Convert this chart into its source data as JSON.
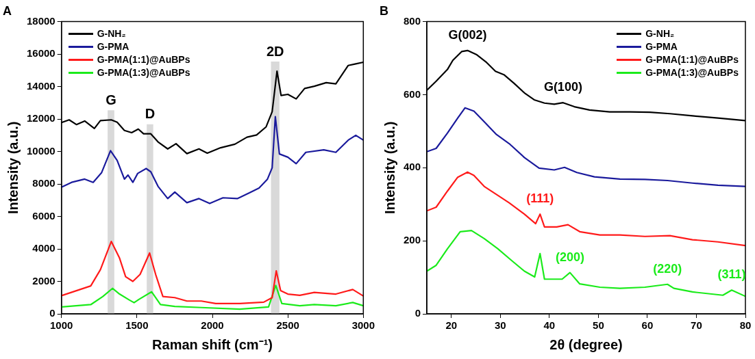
{
  "chart_data": [
    {
      "type": "line",
      "title": "A",
      "xlabel": "Raman shift (cm⁻¹)",
      "ylabel": "Intensity (a.u.)",
      "xlim": [
        1000,
        3000
      ],
      "xticks": [
        1000,
        1500,
        2000,
        2500,
        3000
      ],
      "ylim": [
        0,
        18000
      ],
      "yticks": [
        0,
        2000,
        4000,
        6000,
        8000,
        10000,
        12000,
        14000,
        16000,
        18000
      ],
      "grid": false,
      "legend": "top left",
      "marker": "none",
      "bands": [
        {
          "axis": "x",
          "from": 1306,
          "to": 1350,
          "label": "G",
          "color": "#d9d9d9"
        },
        {
          "axis": "x",
          "from": 1565,
          "to": 1608,
          "label": "D",
          "color": "#d9d9d9"
        },
        {
          "axis": "x",
          "from": 2388,
          "to": 2444,
          "label": "2D",
          "color": "#d9d9d9"
        }
      ],
      "series": [
        {
          "name": "G-NH₂",
          "color": "#000000",
          "x": [
            1000,
            1051,
            1099,
            1154,
            1218,
            1258,
            1330,
            1369,
            1417,
            1465,
            1509,
            1544,
            1592,
            1640,
            1704,
            1759,
            1831,
            1911,
            1966,
            2054,
            2149,
            2229,
            2293,
            2356,
            2396,
            2428,
            2455,
            2500,
            2555,
            2611,
            2675,
            2754,
            2818,
            2900,
            2950,
            3000
          ],
          "values": [
            11780,
            11950,
            11660,
            11880,
            11420,
            11900,
            11950,
            11800,
            11300,
            11160,
            11380,
            11090,
            11090,
            10590,
            10160,
            10480,
            9870,
            10160,
            9900,
            10230,
            10450,
            10880,
            11020,
            11520,
            12450,
            14950,
            13450,
            13520,
            13240,
            13880,
            14020,
            14240,
            14170,
            15300,
            15400,
            15500
          ]
        },
        {
          "name": "G-PMA",
          "color": "#1a1a9c",
          "x": [
            1000,
            1067,
            1154,
            1210,
            1266,
            1325,
            1369,
            1417,
            1441,
            1473,
            1505,
            1561,
            1592,
            1640,
            1704,
            1751,
            1831,
            1911,
            1982,
            2070,
            2165,
            2245,
            2309,
            2365,
            2396,
            2417,
            2444,
            2500,
            2555,
            2619,
            2738,
            2818,
            2900,
            2950,
            3000
          ],
          "values": [
            7800,
            8100,
            8300,
            8100,
            8700,
            10050,
            9450,
            8300,
            8550,
            8100,
            8650,
            8950,
            8750,
            7850,
            7100,
            7500,
            6850,
            7100,
            6800,
            7150,
            7100,
            7450,
            7750,
            8300,
            9000,
            12150,
            9850,
            9650,
            9250,
            9950,
            10100,
            9950,
            10700,
            11000,
            10700
          ]
        },
        {
          "name": "G-PMA(1:1)@AuBPs",
          "color": "#ff1a1a",
          "x": [
            1000,
            1194,
            1258,
            1330,
            1385,
            1425,
            1473,
            1521,
            1584,
            1624,
            1672,
            1751,
            1831,
            1927,
            2022,
            2181,
            2340,
            2396,
            2423,
            2452,
            2500,
            2579,
            2675,
            2818,
            2930,
            3000
          ],
          "values": [
            1120,
            1720,
            2720,
            4460,
            3430,
            2290,
            2000,
            2430,
            3750,
            2430,
            1070,
            1000,
            790,
            790,
            640,
            640,
            720,
            1000,
            2650,
            1430,
            1220,
            1140,
            1320,
            1220,
            1500,
            1100
          ]
        },
        {
          "name": "G-PMA(1:3)@AuBPs",
          "color": "#1aeb1a",
          "x": [
            1000,
            1194,
            1274,
            1338,
            1385,
            1449,
            1481,
            1513,
            1597,
            1656,
            1751,
            1927,
            2181,
            2372,
            2420,
            2460,
            2579,
            2675,
            2818,
            2930,
            3000
          ],
          "values": [
            430,
            570,
            1070,
            1570,
            1220,
            860,
            690,
            890,
            1360,
            570,
            460,
            390,
            290,
            430,
            1750,
            640,
            500,
            570,
            500,
            700,
            500
          ]
        }
      ]
    },
    {
      "type": "line",
      "title": "B",
      "xlabel": "2θ (degree)",
      "ylabel": "Intensity (a.u.)",
      "xlim": [
        15,
        80
      ],
      "xticks": [
        20,
        30,
        40,
        50,
        60,
        70,
        80
      ],
      "ylim": [
        0,
        800
      ],
      "yticks": [
        0,
        200,
        400,
        600,
        800
      ],
      "grid": false,
      "legend": "top right",
      "marker": "none",
      "annotations": [
        {
          "text": "G(002)",
          "x": 23.3,
          "y": 721
        },
        {
          "text": "G(100)",
          "x": 42.8,
          "y": 578
        },
        {
          "text": "(111)",
          "x": 38.1,
          "y": 273
        },
        {
          "text": "(200)",
          "x": 44.2,
          "y": 113
        },
        {
          "text": "(220)",
          "x": 64.1,
          "y": 81
        },
        {
          "text": "(311)",
          "x": 77.2,
          "y": 65
        }
      ],
      "series": [
        {
          "name": "G-NH₂",
          "color": "#000000",
          "x": [
            15,
            16.9,
            19.2,
            20.3,
            22.1,
            23.3,
            25.1,
            27.2,
            29.0,
            30.8,
            32.8,
            34.9,
            36.9,
            39.0,
            41.0,
            42.8,
            45.1,
            48.2,
            52.3,
            56.4,
            60.5,
            64.6,
            69.2,
            74.4,
            80
          ],
          "values": [
            612,
            637,
            669,
            694,
            718,
            721,
            710,
            688,
            664,
            654,
            631,
            605,
            586,
            577,
            574,
            578,
            567,
            558,
            553,
            553,
            552,
            548,
            542,
            536,
            529
          ]
        },
        {
          "name": "G-PMA",
          "color": "#1a1a9c",
          "x": [
            15,
            16.9,
            19.2,
            21.3,
            22.8,
            24.6,
            26.7,
            29.2,
            31.8,
            34.9,
            37.9,
            41.0,
            43.1,
            45.6,
            49.2,
            54.4,
            59.5,
            64.1,
            69.2,
            74.4,
            80
          ],
          "values": [
            444,
            453,
            495,
            536,
            564,
            555,
            526,
            491,
            466,
            428,
            399,
            394,
            401,
            387,
            375,
            369,
            368,
            365,
            358,
            352,
            349
          ]
        },
        {
          "name": "G-PMA(1:1)@AuBPs",
          "color": "#ff1a1a",
          "x": [
            15,
            16.9,
            19.2,
            21.3,
            23.3,
            24.6,
            26.7,
            29.2,
            31.8,
            34.9,
            37.2,
            38.1,
            39.0,
            41.5,
            43.8,
            46.2,
            50.3,
            54.4,
            59.5,
            64.6,
            69.2,
            74.4,
            80
          ],
          "values": [
            282,
            292,
            336,
            374,
            388,
            379,
            349,
            327,
            304,
            273,
            247,
            273,
            238,
            238,
            244,
            225,
            216,
            216,
            212,
            214,
            203,
            197,
            187
          ]
        },
        {
          "name": "G-PMA(1:3)@AuBPs",
          "color": "#1aeb1a",
          "x": [
            15,
            16.9,
            19.2,
            21.8,
            24.1,
            26.7,
            29.5,
            32.3,
            34.9,
            37.0,
            38.1,
            39.0,
            42.6,
            44.2,
            46.2,
            50.3,
            54.4,
            59.5,
            64.1,
            65.4,
            69.2,
            75.4,
            77.2,
            80
          ],
          "values": [
            117,
            133,
            178,
            225,
            228,
            206,
            178,
            146,
            117,
            101,
            165,
            95,
            95,
            113,
            82,
            73,
            70,
            73,
            81,
            70,
            60,
            51,
            65,
            48
          ]
        }
      ]
    }
  ]
}
